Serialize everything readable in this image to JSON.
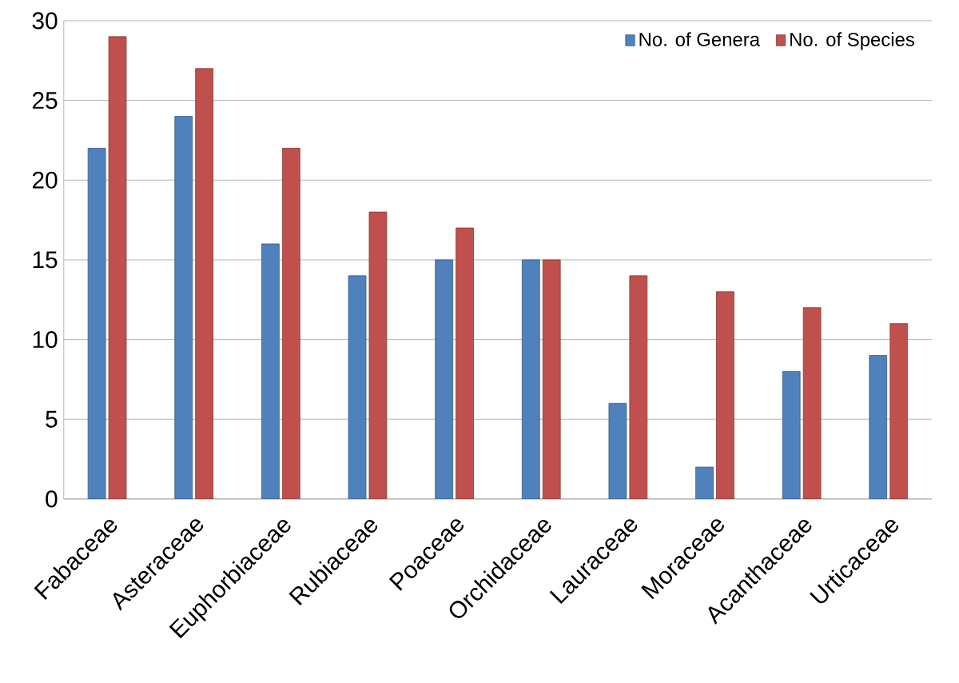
{
  "chart_data": {
    "type": "bar",
    "categories": [
      "Fabaceae",
      "Asteraceae",
      "Euphorbiaceae",
      "Rubiaceae",
      "Poaceae",
      "Orchidaceae",
      "Lauraceae",
      "Moraceae",
      "Acanthaceae",
      "Urticaceae"
    ],
    "series": [
      {
        "name": "No. of Genera",
        "color": "#4f81bd",
        "values": [
          22,
          24,
          16,
          14,
          15,
          15,
          6,
          2,
          8,
          9
        ]
      },
      {
        "name": "No. of Species",
        "color": "#c0504d",
        "values": [
          29,
          27,
          22,
          18,
          17,
          15,
          14,
          13,
          12,
          11
        ]
      }
    ],
    "ylim": [
      0,
      30
    ],
    "yticks": [
      0,
      5,
      10,
      15,
      20,
      25,
      30
    ],
    "grid": "y",
    "legend": "top right"
  }
}
